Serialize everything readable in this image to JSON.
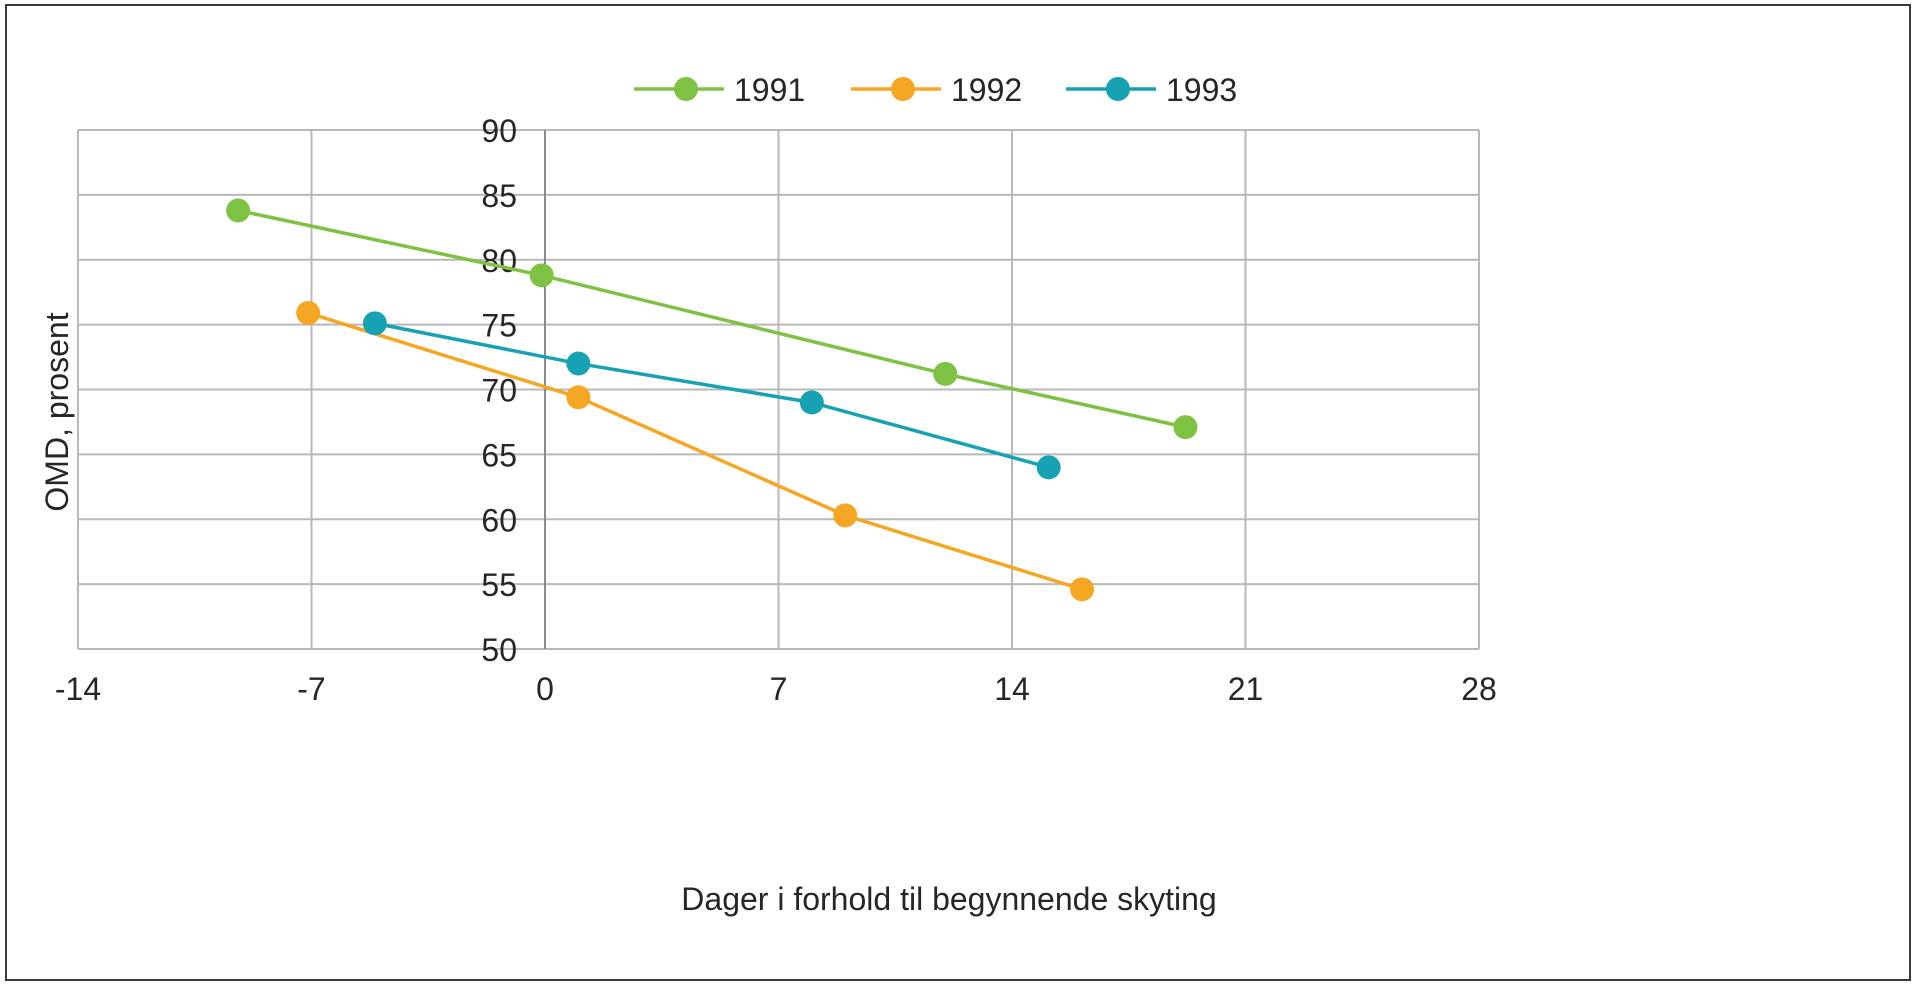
{
  "chart_data": {
    "type": "scatter",
    "title": "",
    "xlabel": "Dager i forhold til begynnende skyting",
    "ylabel": "OMD, prosent",
    "xlim": [
      -14,
      28
    ],
    "ylim": [
      50,
      90
    ],
    "xticks": [
      -14,
      -7,
      0,
      7,
      14,
      21,
      28
    ],
    "xtick_labels": [
      "-14",
      "-7",
      "0",
      "7",
      "14",
      "21",
      "28"
    ],
    "yticks": [
      50,
      55,
      60,
      65,
      70,
      75,
      80,
      85,
      90
    ],
    "ytick_labels": [
      "50",
      "55",
      "60",
      "65",
      "70",
      "75",
      "80",
      "85",
      "90"
    ],
    "grid": true,
    "legend_position": "top-center",
    "lines_with_markers": true,
    "series": [
      {
        "name": "1991",
        "color": "#7dc242",
        "x": [
          -9.2,
          -0.1,
          12,
          19.2
        ],
        "y": [
          83.8,
          78.8,
          71.2,
          67.1
        ]
      },
      {
        "name": "1992",
        "color": "#f5a623",
        "x": [
          -7.1,
          1,
          9,
          16.1
        ],
        "y": [
          75.9,
          69.4,
          60.3,
          54.6
        ]
      },
      {
        "name": "1993",
        "color": "#17a2b3",
        "x": [
          -5.1,
          1,
          8,
          15.1
        ],
        "y": [
          75.1,
          72,
          69,
          64
        ],
        "extra": true
      }
    ]
  }
}
